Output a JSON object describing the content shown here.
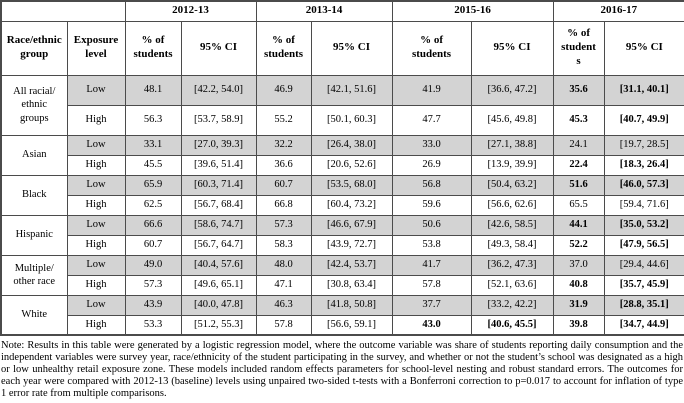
{
  "table": {
    "year_groups": [
      "2012-13",
      "2013-14",
      "2015-16",
      "2016-17"
    ],
    "headers": {
      "race": "Race/ethnic\ngroup",
      "exposure": "Exposure\nlevel",
      "pct_label": "% of\nstudents",
      "pct_label_wrapped": "% of\nstudent\ns",
      "ci_label": "95% CI"
    },
    "groups": [
      {
        "label": "All racial/\nethnic\ngroups",
        "rows": [
          {
            "exposure": "Low",
            "shaded": true,
            "cells": [
              {
                "v": "48.1"
              },
              {
                "v": "[42.2, 54.0]"
              },
              {
                "v": "46.9"
              },
              {
                "v": "[42.1, 51.6]"
              },
              {
                "v": "41.9"
              },
              {
                "v": "[36.6, 47.2]"
              },
              {
                "v": "35.6",
                "bold": true
              },
              {
                "v": "[31.1, 40.1]",
                "bold": true
              }
            ]
          },
          {
            "exposure": "High",
            "shaded": false,
            "cells": [
              {
                "v": "56.3"
              },
              {
                "v": "[53.7, 58.9]"
              },
              {
                "v": "55.2"
              },
              {
                "v": "[50.1, 60.3]"
              },
              {
                "v": "47.7"
              },
              {
                "v": "[45.6, 49.8]"
              },
              {
                "v": "45.3",
                "bold": true
              },
              {
                "v": "[40.7, 49.9]",
                "bold": true
              }
            ]
          }
        ]
      },
      {
        "label": "Asian",
        "rows": [
          {
            "exposure": "Low",
            "shaded": true,
            "cells": [
              {
                "v": "33.1"
              },
              {
                "v": "[27.0, 39.3]"
              },
              {
                "v": "32.2"
              },
              {
                "v": "[26.4, 38.0]"
              },
              {
                "v": "33.0"
              },
              {
                "v": "[27.1, 38.8]"
              },
              {
                "v": "24.1"
              },
              {
                "v": "[19.7, 28.5]"
              }
            ]
          },
          {
            "exposure": "High",
            "shaded": false,
            "cells": [
              {
                "v": "45.5"
              },
              {
                "v": "[39.6, 51.4]"
              },
              {
                "v": "36.6"
              },
              {
                "v": "[20.6, 52.6]"
              },
              {
                "v": "26.9"
              },
              {
                "v": "[13.9, 39.9]"
              },
              {
                "v": "22.4",
                "bold": true
              },
              {
                "v": "[18.3, 26.4]",
                "bold": true
              }
            ]
          }
        ]
      },
      {
        "label": "Black",
        "rows": [
          {
            "exposure": "Low",
            "shaded": true,
            "cells": [
              {
                "v": "65.9"
              },
              {
                "v": "[60.3, 71.4]"
              },
              {
                "v": "60.7"
              },
              {
                "v": "[53.5, 68.0]"
              },
              {
                "v": "56.8"
              },
              {
                "v": "[50.4, 63.2]"
              },
              {
                "v": "51.6",
                "bold": true
              },
              {
                "v": "[46.0, 57.3]",
                "bold": true
              }
            ]
          },
          {
            "exposure": "High",
            "shaded": false,
            "cells": [
              {
                "v": "62.5"
              },
              {
                "v": "[56.7, 68.4]"
              },
              {
                "v": "66.8"
              },
              {
                "v": "[60.4, 73.2]"
              },
              {
                "v": "59.6"
              },
              {
                "v": "[56.6, 62.6]"
              },
              {
                "v": "65.5"
              },
              {
                "v": "[59.4, 71.6]"
              }
            ]
          }
        ]
      },
      {
        "label": "Hispanic",
        "rows": [
          {
            "exposure": "Low",
            "shaded": true,
            "cells": [
              {
                "v": "66.6"
              },
              {
                "v": "[58.6, 74.7]"
              },
              {
                "v": "57.3"
              },
              {
                "v": "[46.6, 67.9]"
              },
              {
                "v": "50.6"
              },
              {
                "v": "[42.6, 58.5]"
              },
              {
                "v": "44.1",
                "bold": true
              },
              {
                "v": "[35.0, 53.2]",
                "bold": true
              }
            ]
          },
          {
            "exposure": "High",
            "shaded": false,
            "cells": [
              {
                "v": "60.7"
              },
              {
                "v": "[56.7, 64.7]"
              },
              {
                "v": "58.3"
              },
              {
                "v": "[43.9, 72.7]"
              },
              {
                "v": "53.8"
              },
              {
                "v": "[49.3, 58.4]"
              },
              {
                "v": "52.2",
                "bold": true
              },
              {
                "v": "[47.9, 56.5]",
                "bold": true
              }
            ]
          }
        ]
      },
      {
        "label": "Multiple/\nother race",
        "rows": [
          {
            "exposure": "Low",
            "shaded": true,
            "cells": [
              {
                "v": "49.0"
              },
              {
                "v": "[40.4, 57.6]"
              },
              {
                "v": "48.0"
              },
              {
                "v": "[42.4, 53.7]"
              },
              {
                "v": "41.7"
              },
              {
                "v": "[36.2, 47.3]"
              },
              {
                "v": "37.0"
              },
              {
                "v": "[29.4, 44.6]"
              }
            ]
          },
          {
            "exposure": "High",
            "shaded": false,
            "cells": [
              {
                "v": "57.3"
              },
              {
                "v": "[49.6, 65.1]"
              },
              {
                "v": "47.1"
              },
              {
                "v": "[30.8, 63.4]"
              },
              {
                "v": "57.8"
              },
              {
                "v": "[52.1, 63.6]"
              },
              {
                "v": "40.8",
                "bold": true
              },
              {
                "v": "[35.7, 45.9]",
                "bold": true
              }
            ]
          }
        ]
      },
      {
        "label": "White",
        "rows": [
          {
            "exposure": "Low",
            "shaded": true,
            "cells": [
              {
                "v": "43.9"
              },
              {
                "v": "[40.0, 47.8]"
              },
              {
                "v": "46.3"
              },
              {
                "v": "[41.8, 50.8]"
              },
              {
                "v": "37.7"
              },
              {
                "v": "[33.2, 42.2]"
              },
              {
                "v": "31.9",
                "bold": true
              },
              {
                "v": "[28.8, 35.1]",
                "bold": true
              }
            ]
          },
          {
            "exposure": "High",
            "shaded": false,
            "cells": [
              {
                "v": "53.3"
              },
              {
                "v": "[51.2, 55.3]"
              },
              {
                "v": "57.8"
              },
              {
                "v": "[56.6, 59.1]"
              },
              {
                "v": "43.0",
                "bold": true
              },
              {
                "v": "[40.6, 45.5]",
                "bold": true
              },
              {
                "v": "39.8",
                "bold": true
              },
              {
                "v": "[34.7, 44.9]",
                "bold": true
              }
            ]
          }
        ]
      }
    ]
  },
  "note": "Note: Results in this table were generated by a logistic regression model, where the outcome variable was share of students reporting daily consumption and the independent variables were survey year, race/ethnicity of the student participating in the survey, and whether or not the student’s school was designated as a high or low unhealthy retail exposure zone. These models included random effects parameters for school-level nesting and robust standard errors. The outcomes for each year were compared with 2012-13 (baseline) levels using unpaired two-sided t-tests with a Bonferroni correction to p=0.017 to account for inflation of type 1 error rate from multiple comparisons.",
  "colors": {
    "shaded_row": "#d3d3d3",
    "border": "#4b4b4b",
    "text": "#000000",
    "background": "#ffffff"
  }
}
